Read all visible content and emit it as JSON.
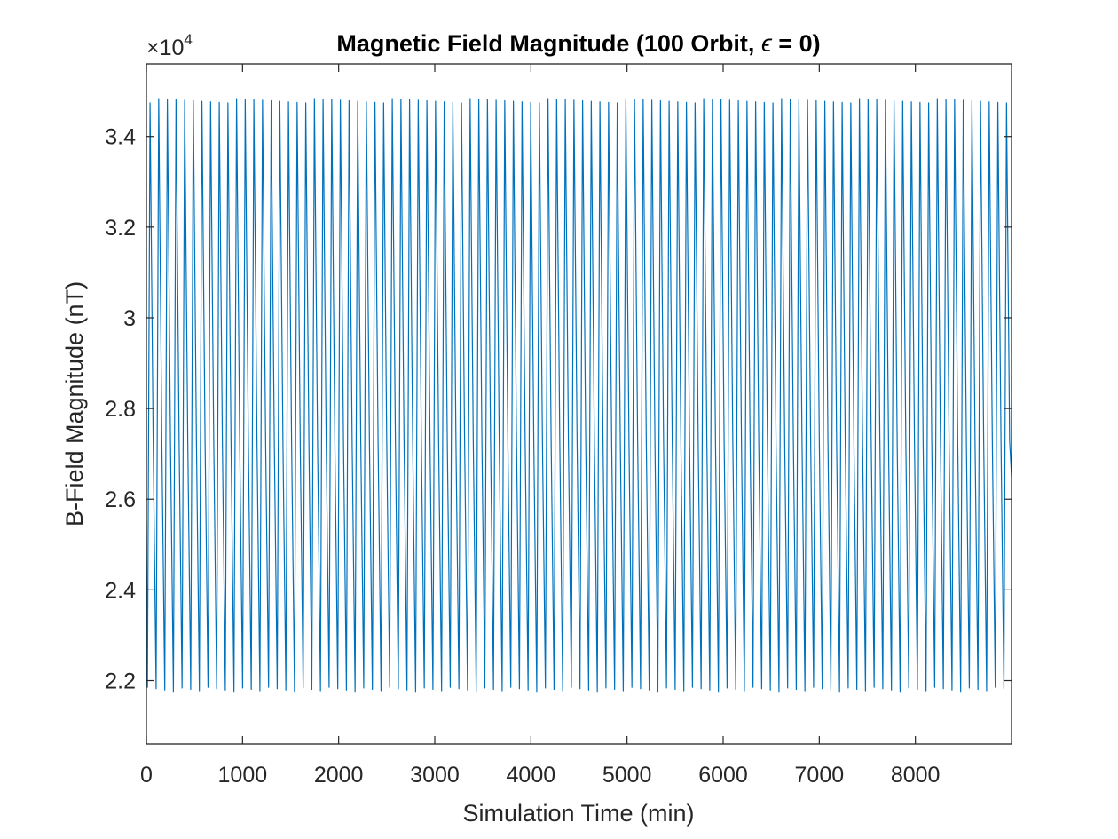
{
  "chart_data": {
    "type": "line",
    "title": "Magnetic Field Magnitude (100 Orbit, ",
    "title_symbol": "ϵ",
    "title_suffix": " = 0)",
    "xlabel": "Simulation Time (min)",
    "ylabel": "B-Field Magnitude (nT)",
    "y_exponent_base": "×10",
    "y_exponent_power": "4",
    "xlim": [
      0,
      9000
    ],
    "ylim": [
      2.06,
      3.56
    ],
    "x_ticks": [
      0,
      1000,
      2000,
      3000,
      4000,
      5000,
      6000,
      7000,
      8000
    ],
    "x_tick_labels": [
      "0",
      "1000",
      "2000",
      "3000",
      "4000",
      "5000",
      "6000",
      "7000",
      "8000"
    ],
    "y_ticks": [
      2.2,
      2.4,
      2.6,
      2.8,
      3.0,
      3.2,
      3.4
    ],
    "y_tick_labels": [
      "2.2",
      "2.4",
      "2.6",
      "2.8",
      "3",
      "3.2",
      "3.4"
    ],
    "grid": false,
    "series": [
      {
        "color": "#0072BD",
        "start_value": 2.55,
        "end_value": 2.65,
        "period_min": 90,
        "n_orbits": 100,
        "peak_value": 3.48,
        "trough_value": 2.185
      }
    ]
  }
}
